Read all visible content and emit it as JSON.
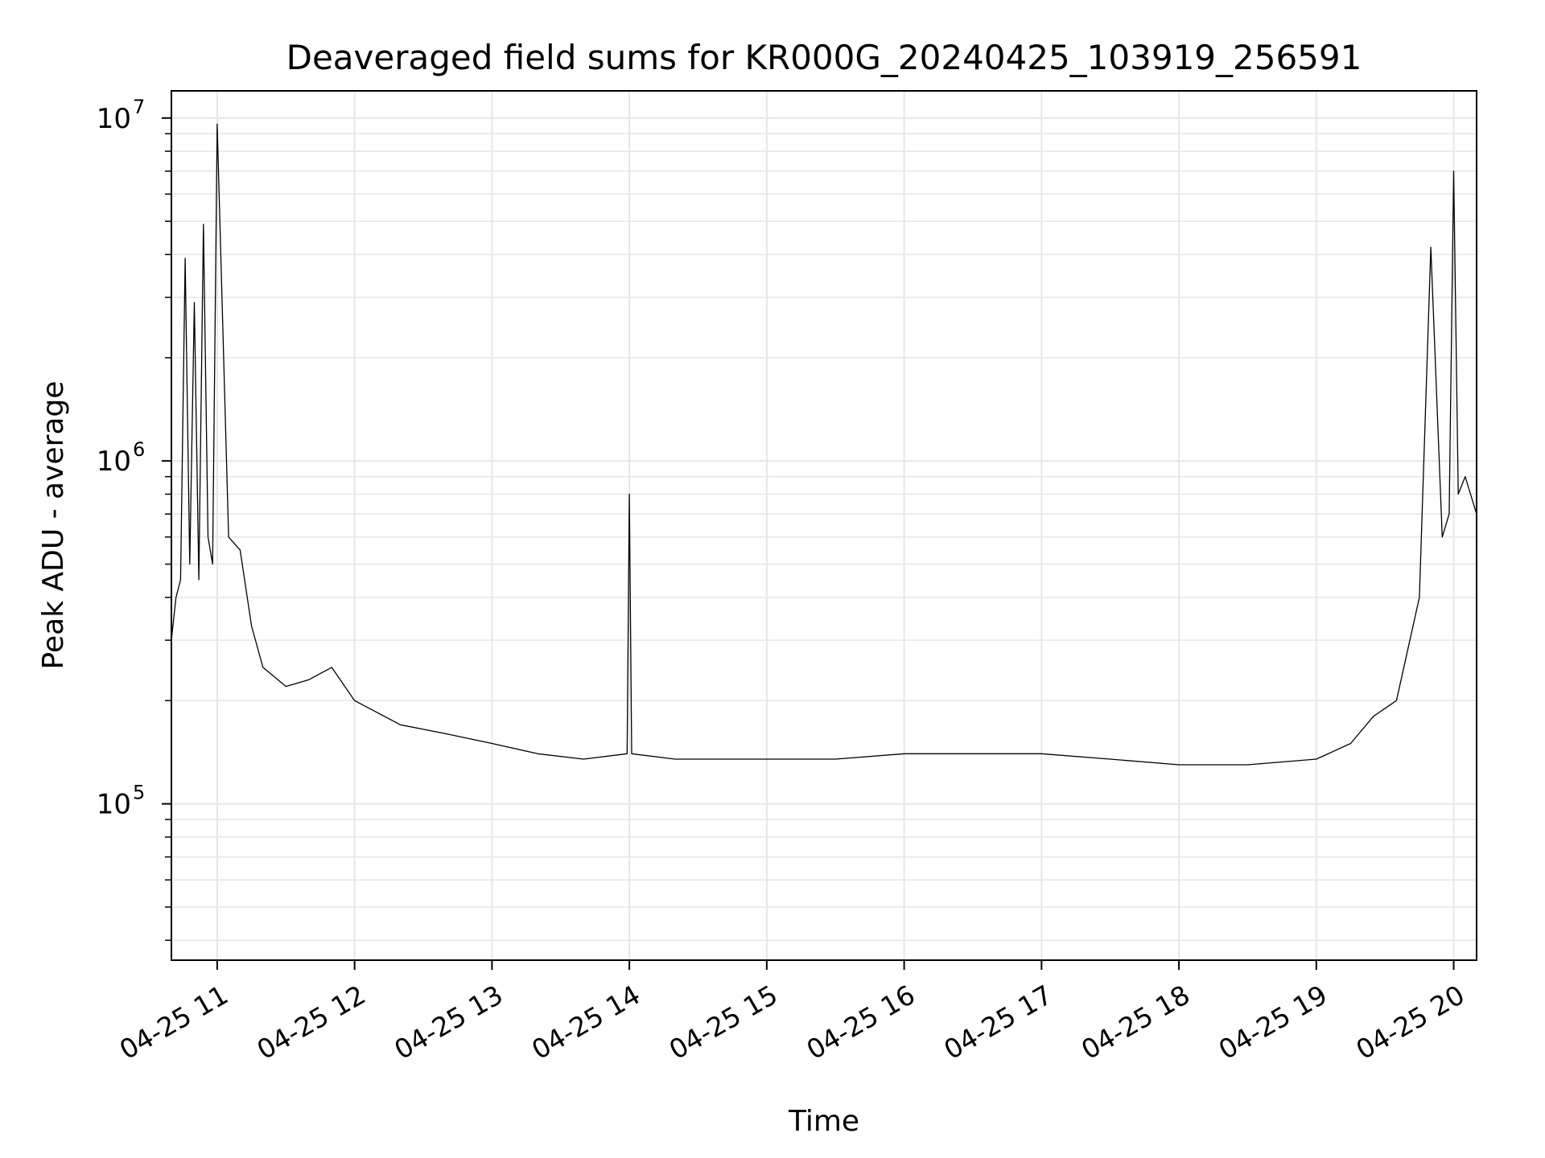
{
  "chart_data": {
    "type": "line",
    "title": "Deaveraged field sums for KR000G_20240425_103919_256591",
    "xlabel": "Time",
    "ylabel": "Peak ADU - average",
    "x_scale": "time",
    "y_scale": "log",
    "xlim": [
      "2024-04-25T10:40",
      "2024-04-25T20:10"
    ],
    "ylim": [
      35000,
      12000000
    ],
    "grid": true,
    "x_ticks": [
      {
        "value": "2024-04-25T11:00",
        "label": "04-25 11"
      },
      {
        "value": "2024-04-25T12:00",
        "label": "04-25 12"
      },
      {
        "value": "2024-04-25T13:00",
        "label": "04-25 13"
      },
      {
        "value": "2024-04-25T14:00",
        "label": "04-25 14"
      },
      {
        "value": "2024-04-25T15:00",
        "label": "04-25 15"
      },
      {
        "value": "2024-04-25T16:00",
        "label": "04-25 16"
      },
      {
        "value": "2024-04-25T17:00",
        "label": "04-25 17"
      },
      {
        "value": "2024-04-25T18:00",
        "label": "04-25 18"
      },
      {
        "value": "2024-04-25T19:00",
        "label": "04-25 19"
      },
      {
        "value": "2024-04-25T20:00",
        "label": "04-25 20"
      }
    ],
    "y_ticks": [
      {
        "value": 100000,
        "base": "10",
        "exp": "5"
      },
      {
        "value": 1000000,
        "base": "10",
        "exp": "6"
      },
      {
        "value": 10000000,
        "base": "10",
        "exp": "7"
      }
    ],
    "line_color": "#000000",
    "series": [
      {
        "x": [
          "2024-04-25T10:40",
          "2024-04-25T10:42",
          "2024-04-25T10:44",
          "2024-04-25T10:46",
          "2024-04-25T10:48",
          "2024-04-25T10:50",
          "2024-04-25T10:52",
          "2024-04-25T10:54",
          "2024-04-25T10:56",
          "2024-04-25T10:58",
          "2024-04-25T11:00",
          "2024-04-25T11:05",
          "2024-04-25T11:10",
          "2024-04-25T11:15",
          "2024-04-25T11:20",
          "2024-04-25T11:30",
          "2024-04-25T11:40",
          "2024-04-25T11:50",
          "2024-04-25T12:00",
          "2024-04-25T12:20",
          "2024-04-25T12:40",
          "2024-04-25T13:00",
          "2024-04-25T13:20",
          "2024-04-25T13:40",
          "2024-04-25T13:59",
          "2024-04-25T14:00",
          "2024-04-25T14:01",
          "2024-04-25T14:20",
          "2024-04-25T14:40",
          "2024-04-25T15:00",
          "2024-04-25T15:30",
          "2024-04-25T16:00",
          "2024-04-25T16:30",
          "2024-04-25T17:00",
          "2024-04-25T17:30",
          "2024-04-25T18:00",
          "2024-04-25T18:30",
          "2024-04-25T19:00",
          "2024-04-25T19:15",
          "2024-04-25T19:25",
          "2024-04-25T19:35",
          "2024-04-25T19:45",
          "2024-04-25T19:50",
          "2024-04-25T19:55",
          "2024-04-25T19:58",
          "2024-04-25T20:00",
          "2024-04-25T20:02",
          "2024-04-25T20:05",
          "2024-04-25T20:10"
        ],
        "y": [
          300000,
          400000,
          450000,
          3900000,
          500000,
          2900000,
          450000,
          4900000,
          600000,
          500000,
          9600000,
          600000,
          550000,
          330000,
          250000,
          220000,
          230000,
          250000,
          200000,
          170000,
          160000,
          150000,
          140000,
          135000,
          140000,
          800000,
          140000,
          135000,
          135000,
          135000,
          135000,
          140000,
          140000,
          140000,
          135000,
          130000,
          130000,
          135000,
          150000,
          180000,
          200000,
          400000,
          4200000,
          600000,
          700000,
          7000000,
          800000,
          900000,
          700000
        ]
      }
    ]
  }
}
